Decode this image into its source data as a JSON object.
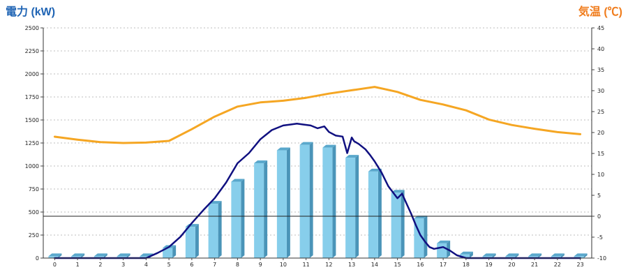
{
  "chart_data": {
    "type": "bar+line",
    "ylabel_left": "電力 (kW)",
    "ylabel_right": "気温 (℃)",
    "categories": [
      "0",
      "1",
      "2",
      "3",
      "4",
      "5",
      "6",
      "7",
      "8",
      "9",
      "10",
      "11",
      "12",
      "13",
      "14",
      "15",
      "16",
      "17",
      "18",
      "19",
      "20",
      "21",
      "22",
      "23"
    ],
    "ylim_left": [
      0,
      2500
    ],
    "yticks_left": [
      "0",
      "250",
      "500",
      "750",
      "1000",
      "1250",
      "1500",
      "1750",
      "2000",
      "2250",
      "2500"
    ],
    "ylim_right": [
      -10,
      45
    ],
    "yticks_right": [
      "-10",
      "-5",
      "0",
      "5",
      "10",
      "15",
      "20",
      "25",
      "30",
      "35",
      "40",
      "45"
    ],
    "grid": true,
    "series": [
      {
        "kind": "bar",
        "axis": "left",
        "values": [
          20,
          20,
          20,
          20,
          20,
          110,
          340,
          590,
          830,
          1030,
          1170,
          1230,
          1200,
          1090,
          940,
          710,
          430,
          160,
          40,
          20,
          20,
          20,
          20,
          20
        ]
      },
      {
        "kind": "line",
        "axis": "left",
        "x": [
          0,
          1,
          2,
          3,
          4,
          4.5,
          5,
          5.5,
          6,
          6.5,
          7,
          7.5,
          8,
          8.5,
          9,
          9.5,
          10,
          10.3,
          10.6,
          10.9,
          11.2,
          11.5,
          11.8,
          12,
          12.3,
          12.6,
          12.8,
          13,
          13.1,
          13.3,
          13.6,
          13.8,
          14,
          14.3,
          14.6,
          15,
          15.2,
          15.4,
          15.6,
          15.8,
          16,
          16.2,
          16.4,
          16.6,
          16.8,
          17,
          17.3,
          17.6,
          18,
          19,
          20,
          21,
          22,
          23
        ],
        "values": [
          0,
          0,
          0,
          0,
          0,
          55,
          120,
          230,
          380,
          520,
          650,
          820,
          1030,
          1140,
          1290,
          1390,
          1440,
          1450,
          1460,
          1450,
          1440,
          1410,
          1430,
          1370,
          1330,
          1320,
          1140,
          1310,
          1270,
          1240,
          1180,
          1120,
          1050,
          930,
          780,
          650,
          700,
          590,
          480,
          360,
          250,
          180,
          120,
          100,
          110,
          120,
          80,
          30,
          0,
          0,
          0,
          0,
          0,
          0
        ]
      },
      {
        "kind": "line",
        "axis": "right",
        "x": [
          0,
          1,
          2,
          3,
          4,
          5,
          6,
          7,
          8,
          9,
          10,
          11,
          12,
          13,
          14,
          15,
          16,
          17,
          18,
          19,
          20,
          21,
          22,
          23
        ],
        "values": [
          19,
          18.3,
          17.7,
          17.5,
          17.6,
          18,
          20.8,
          23.8,
          26.2,
          27.2,
          27.6,
          28.3,
          29.3,
          30.1,
          30.9,
          29.7,
          27.8,
          26.7,
          25.3,
          23.1,
          21.8,
          20.9,
          20.1,
          19.6
        ]
      }
    ]
  }
}
